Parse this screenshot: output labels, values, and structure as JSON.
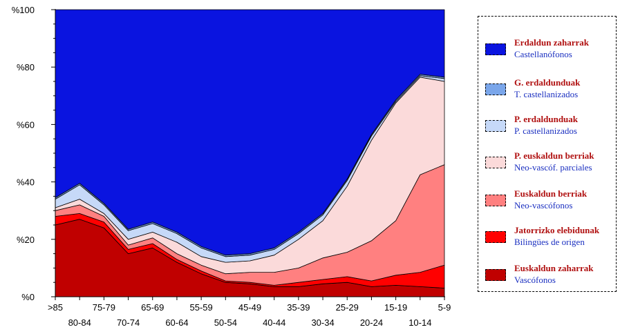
{
  "chart_data": {
    "type": "area",
    "stacked": true,
    "x_top_row": [
      ">85",
      "75-79",
      "65-69",
      "55-59",
      "45-49",
      "35-39",
      "25-29",
      "15-19",
      "5-9"
    ],
    "x_bottom_row": [
      "80-84",
      "70-74",
      "60-64",
      "50-54",
      "40-44",
      "30-34",
      "20-24",
      "10-14"
    ],
    "categories": [
      ">85",
      "80-84",
      "75-79",
      "70-74",
      "65-69",
      "60-64",
      "55-59",
      "50-54",
      "45-49",
      "40-44",
      "35-39",
      "30-34",
      "25-29",
      "20-24",
      "15-19",
      "10-14",
      "5-9"
    ],
    "y_tick_labels": [
      "%0",
      "%20",
      "%40",
      "%60",
      "%80",
      "%100"
    ],
    "ylim": [
      0,
      100
    ],
    "grid": false,
    "legend_position": "right",
    "series": [
      {
        "name": "Euskaldun zaharrak",
        "subtitle": "Vascófonos",
        "color": "#c00000",
        "values": [
          25,
          27,
          24,
          15,
          17,
          12,
          8,
          5,
          4.5,
          3.5,
          3.5,
          4.5,
          5,
          3.5,
          4,
          3.5,
          3
        ]
      },
      {
        "name": "Jatorrizko elebidunak",
        "subtitle": "Bilingües de origen",
        "color": "#ff0000",
        "values": [
          3,
          2,
          2,
          1.5,
          1.5,
          1,
          1,
          0.5,
          0.5,
          0.5,
          1.5,
          1.5,
          2,
          2,
          3.5,
          5,
          8
        ]
      },
      {
        "name": "Euskaldun berriak",
        "subtitle": "Neo-vascófonos",
        "color": "#ff8080",
        "values": [
          2,
          3,
          2,
          1.5,
          2,
          2,
          2,
          2.5,
          3.5,
          4.5,
          5,
          7.5,
          8.5,
          14,
          19,
          34,
          35
        ]
      },
      {
        "name": "P. euskaldun berriak",
        "subtitle": "Neo-vascóf. parciales",
        "color": "#fbdada",
        "values": [
          1,
          2,
          1,
          2,
          2,
          4,
          3,
          4,
          4,
          6,
          10,
          13,
          23,
          35,
          41,
          34,
          29
        ]
      },
      {
        "name": "P. erdaldunduak",
        "subtitle": "P. castellanizados",
        "color": "#c6d9f8",
        "values": [
          3,
          5,
          3,
          3,
          3,
          3,
          3,
          2,
          2,
          2,
          2,
          2,
          2,
          1.5,
          0.5,
          0.5,
          1
        ]
      },
      {
        "name": "G. erdaldunduak",
        "subtitle": "T. castellanizados",
        "color": "#7aa6ea",
        "values": [
          0.5,
          0.5,
          0.5,
          0.5,
          0.5,
          0.5,
          0.5,
          0.5,
          0.5,
          0.5,
          0.5,
          0.5,
          0.5,
          0.5,
          0.5,
          0.5,
          0.5
        ]
      },
      {
        "name": "Erdaldun zaharrak",
        "subtitle": "Castellanófonos",
        "color": "#0a14e0",
        "values": [
          65.5,
          60.5,
          67.5,
          76.5,
          74,
          77.5,
          82.5,
          85.5,
          85,
          83,
          77.5,
          71,
          59,
          43.5,
          31.5,
          22.5,
          23.5
        ]
      }
    ]
  },
  "legend": {
    "items": [
      {
        "name": "Erdaldun zaharrak",
        "sub": "Castellanófonos",
        "color": "#0a14e0"
      },
      {
        "name": "G. erdaldunduak",
        "sub": "T. castellanizados",
        "color": "#7aa6ea"
      },
      {
        "name": "P. erdaldunduak",
        "sub": "P. castellanizados",
        "color": "#c6d9f8"
      },
      {
        "name": "P. euskaldun berriak",
        "sub": "Neo-vascóf. parciales",
        "color": "#fbdada"
      },
      {
        "name": "Euskaldun berriak",
        "sub": "Neo-vascófonos",
        "color": "#ff8080"
      },
      {
        "name": "Jatorrizko elebidunak",
        "sub": "Bilingües de origen",
        "color": "#ff0000"
      },
      {
        "name": "Euskaldun zaharrak",
        "sub": "Vascófonos",
        "color": "#c00000"
      }
    ]
  }
}
